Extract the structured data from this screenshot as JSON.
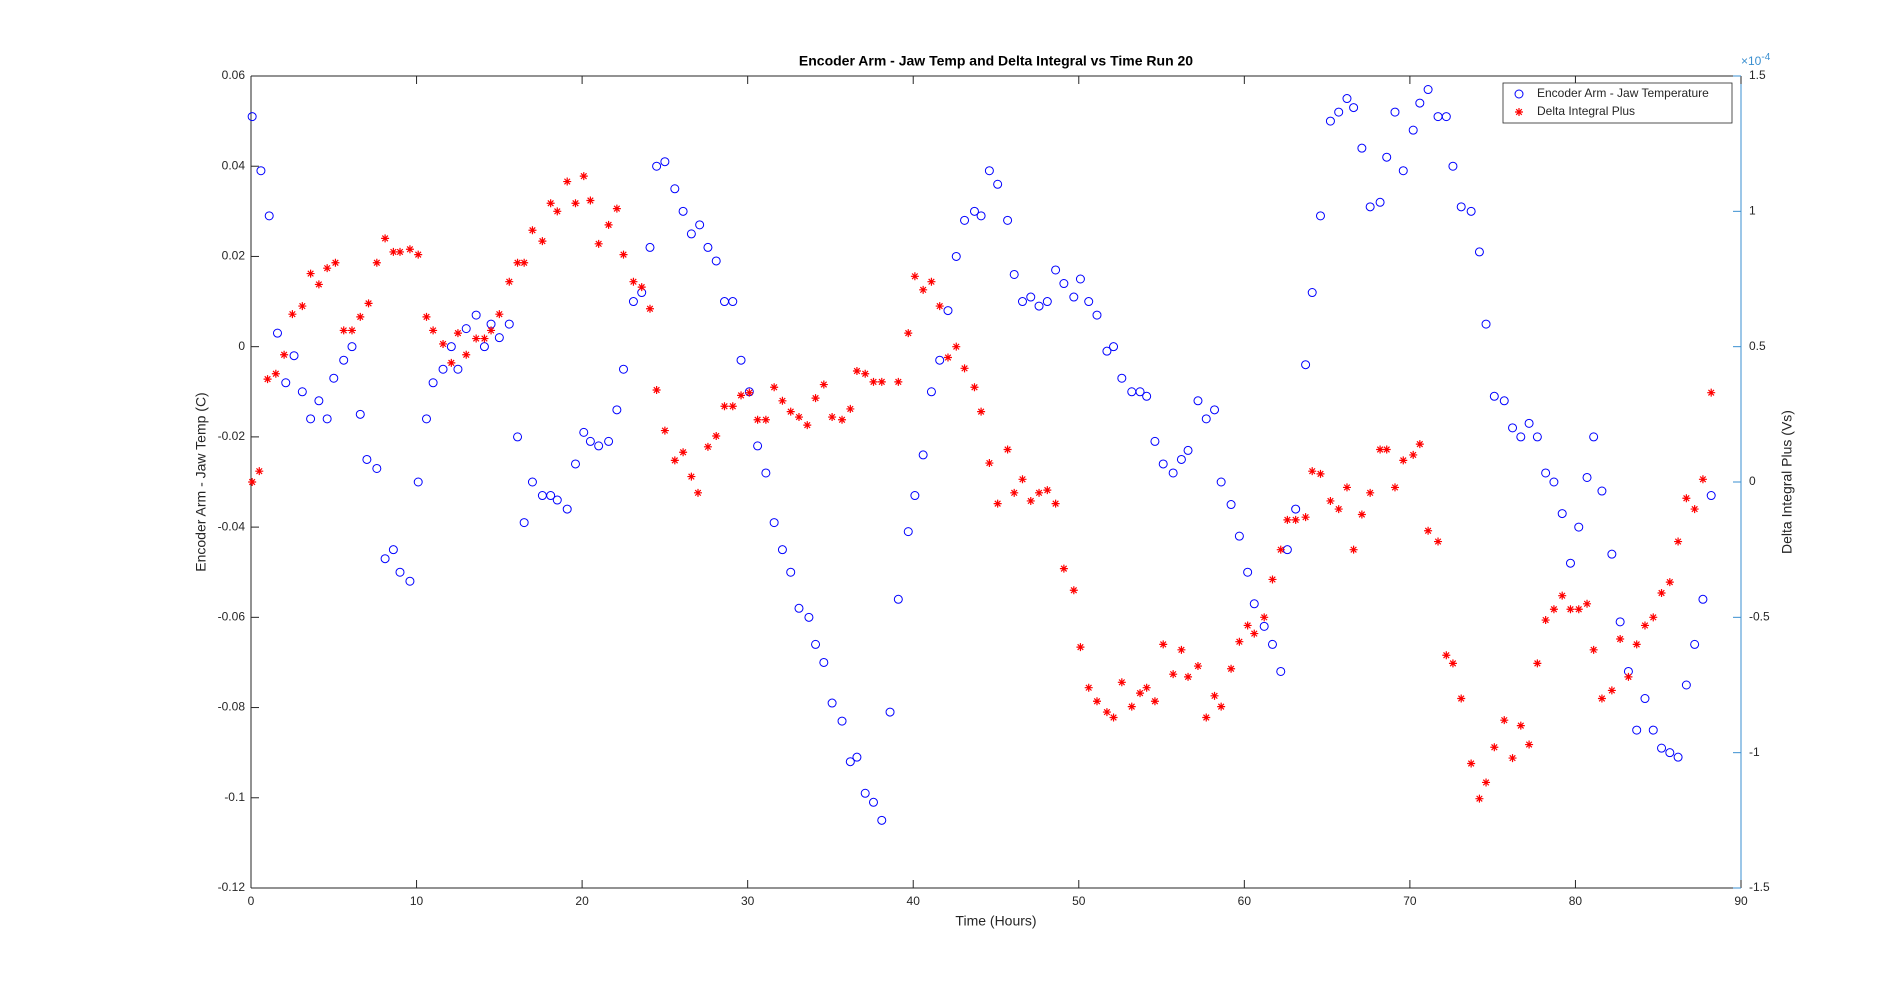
{
  "chart_data": {
    "type": "scatter",
    "title": "Encoder Arm - Jaw Temp and Delta Integral vs Time Run 20",
    "x_label": "Time (Hours)",
    "y_label": "Encoder Arm - Jaw Temp (C)",
    "y2_label": "Delta Integral Plus (Vs)",
    "y2_multiplier": {
      "base": "×10",
      "exponent": "-4"
    },
    "y2_color": "#3a8fd0",
    "xlim": [
      0,
      90
    ],
    "xticks": [
      0,
      10,
      20,
      30,
      40,
      50,
      60,
      70,
      80,
      90
    ],
    "ylim": [
      -0.12,
      0.06
    ],
    "yticks": [
      -0.12,
      -0.1,
      -0.08,
      -0.06,
      -0.04,
      -0.02,
      0,
      0.02,
      0.04,
      0.06
    ],
    "y2lim": [
      -1.5,
      1.5
    ],
    "y2ticks": [
      -1.5,
      -1,
      -0.5,
      0,
      0.5,
      1,
      1.5
    ],
    "grid": false,
    "legend": "top-right",
    "series": [
      {
        "name": "Encoder Arm - Jaw Temperature",
        "color": "#0000ff",
        "marker": "circle",
        "axis": "y",
        "x": [
          0.07,
          0.6,
          1.1,
          1.6,
          2.1,
          2.6,
          3.1,
          3.6,
          4.1,
          4.6,
          5.0,
          5.6,
          6.1,
          6.6,
          7.0,
          7.6,
          8.1,
          8.6,
          9.0,
          9.6,
          10.1,
          10.6,
          11.0,
          11.6,
          12.1,
          12.5,
          13.0,
          13.6,
          14.1,
          14.5,
          15.0,
          15.6,
          16.1,
          16.5,
          17.0,
          17.6,
          18.1,
          18.5,
          19.1,
          19.6,
          20.1,
          20.5,
          21.0,
          21.6,
          22.1,
          22.5,
          23.1,
          23.6,
          24.1,
          24.5,
          25.0,
          25.6,
          26.1,
          26.6,
          27.1,
          27.6,
          28.1,
          28.6,
          29.1,
          29.6,
          30.1,
          30.6,
          31.1,
          31.6,
          32.1,
          32.6,
          33.1,
          33.7,
          34.1,
          34.6,
          35.1,
          35.7,
          36.2,
          36.6,
          37.1,
          37.6,
          38.1,
          38.6,
          39.1,
          39.7,
          40.1,
          40.6,
          41.1,
          41.6,
          42.1,
          42.6,
          43.1,
          43.7,
          44.1,
          44.6,
          45.1,
          45.7,
          46.1,
          46.6,
          47.1,
          47.6,
          48.1,
          48.6,
          49.1,
          49.7,
          50.1,
          50.6,
          51.1,
          51.7,
          52.1,
          52.6,
          53.2,
          53.7,
          54.1,
          54.6,
          55.1,
          55.7,
          56.2,
          56.6,
          57.2,
          57.7,
          58.2,
          58.6,
          59.2,
          59.7,
          60.2,
          60.6,
          61.2,
          61.7,
          62.2,
          62.6,
          63.1,
          63.7,
          64.1,
          64.6,
          65.2,
          65.7,
          66.2,
          66.6,
          67.1,
          67.6,
          68.2,
          68.6,
          69.1,
          69.6,
          70.2,
          70.6,
          71.1,
          71.7,
          72.2,
          72.6,
          73.1,
          73.7,
          74.2,
          74.6,
          75.1,
          75.7,
          76.2,
          76.7,
          77.2,
          77.7,
          78.2,
          78.7,
          79.2,
          79.7,
          80.2,
          80.7,
          81.1,
          81.6,
          82.2,
          82.7,
          83.2,
          83.7,
          84.2,
          84.7,
          85.2,
          85.7,
          86.2,
          86.7,
          87.2,
          87.7,
          88.2
        ],
        "values": [
          0.051,
          0.039,
          0.029,
          0.003,
          -0.008,
          -0.002,
          -0.01,
          -0.016,
          -0.012,
          -0.016,
          -0.007,
          -0.003,
          0.0,
          -0.015,
          -0.025,
          -0.027,
          -0.047,
          -0.045,
          -0.05,
          -0.052,
          -0.03,
          -0.016,
          -0.008,
          -0.005,
          0.0,
          -0.005,
          0.004,
          0.007,
          0.0,
          0.005,
          0.002,
          0.005,
          -0.02,
          -0.039,
          -0.03,
          -0.033,
          -0.033,
          -0.034,
          -0.036,
          -0.026,
          -0.019,
          -0.021,
          -0.022,
          -0.021,
          -0.014,
          -0.005,
          0.01,
          0.012,
          0.022,
          0.04,
          0.041,
          0.035,
          0.03,
          0.025,
          0.027,
          0.022,
          0.019,
          0.01,
          0.01,
          -0.003,
          -0.01,
          -0.022,
          -0.028,
          -0.039,
          -0.045,
          -0.05,
          -0.058,
          -0.06,
          -0.066,
          -0.07,
          -0.079,
          -0.083,
          -0.092,
          -0.091,
          -0.099,
          -0.101,
          -0.105,
          -0.081,
          -0.056,
          -0.041,
          -0.033,
          -0.024,
          -0.01,
          -0.003,
          0.008,
          0.02,
          0.028,
          0.03,
          0.029,
          0.039,
          0.036,
          0.028,
          0.016,
          0.01,
          0.011,
          0.009,
          0.01,
          0.017,
          0.014,
          0.011,
          0.015,
          0.01,
          0.007,
          -0.001,
          0.0,
          -0.007,
          -0.01,
          -0.01,
          -0.011,
          -0.021,
          -0.026,
          -0.028,
          -0.025,
          -0.023,
          -0.012,
          -0.016,
          -0.014,
          -0.03,
          -0.035,
          -0.042,
          -0.05,
          -0.057,
          -0.062,
          -0.066,
          -0.072,
          -0.045,
          -0.036,
          -0.004,
          0.012,
          0.029,
          0.05,
          0.052,
          0.055,
          0.053,
          0.044,
          0.031,
          0.032,
          0.042,
          0.052,
          0.039,
          0.048,
          0.054,
          0.057,
          0.051,
          0.051,
          0.04,
          0.031,
          0.03,
          0.021,
          0.005,
          -0.011,
          -0.012,
          -0.018,
          -0.02,
          -0.017,
          -0.02,
          -0.028,
          -0.03,
          -0.037,
          -0.048,
          -0.04,
          -0.029,
          -0.02,
          -0.032,
          -0.046,
          -0.061,
          -0.072,
          -0.085,
          -0.078,
          -0.085,
          -0.089,
          -0.09,
          -0.091,
          -0.075,
          -0.066,
          -0.056,
          -0.033
        ]
      },
      {
        "name": "Delta Integral Plus",
        "color": "#ff0000",
        "marker": "asterisk",
        "axis": "y2",
        "x": [
          0.07,
          0.5,
          1.0,
          1.5,
          2.0,
          2.5,
          3.1,
          3.6,
          4.1,
          4.6,
          5.1,
          5.6,
          6.1,
          6.6,
          7.1,
          7.6,
          8.1,
          8.6,
          9.0,
          9.6,
          10.1,
          10.6,
          11.0,
          11.6,
          12.1,
          12.5,
          13.0,
          13.6,
          14.1,
          14.5,
          15.0,
          15.6,
          16.1,
          16.5,
          17.0,
          17.6,
          18.1,
          18.5,
          19.1,
          19.6,
          20.1,
          20.5,
          21.0,
          21.6,
          22.1,
          22.5,
          23.1,
          23.6,
          24.1,
          24.5,
          25.0,
          25.6,
          26.1,
          26.6,
          27.0,
          27.6,
          28.1,
          28.6,
          29.1,
          29.6,
          30.1,
          30.6,
          31.1,
          31.6,
          32.1,
          32.6,
          33.1,
          33.6,
          34.1,
          34.6,
          35.1,
          35.7,
          36.2,
          36.6,
          37.1,
          37.6,
          38.1,
          39.1,
          39.7,
          40.1,
          40.6,
          41.1,
          41.6,
          42.1,
          42.6,
          43.1,
          43.7,
          44.1,
          44.6,
          45.1,
          45.7,
          46.1,
          46.6,
          47.1,
          47.6,
          48.1,
          48.6,
          49.1,
          49.7,
          50.1,
          50.6,
          51.1,
          51.7,
          52.1,
          52.6,
          53.2,
          53.7,
          54.1,
          54.6,
          55.1,
          55.7,
          56.2,
          56.6,
          57.2,
          57.7,
          58.2,
          58.6,
          59.2,
          59.7,
          60.2,
          60.6,
          61.2,
          61.7,
          62.2,
          62.6,
          63.1,
          63.7,
          64.1,
          64.6,
          65.2,
          65.7,
          66.2,
          66.6,
          67.1,
          67.6,
          68.2,
          68.6,
          69.1,
          69.6,
          70.2,
          70.6,
          71.1,
          71.7,
          72.2,
          72.6,
          73.1,
          73.7,
          74.2,
          74.6,
          75.1,
          75.7,
          76.2,
          76.7,
          77.2,
          77.7,
          78.2,
          78.7,
          79.2,
          79.7,
          80.2,
          80.7,
          81.1,
          81.6,
          82.2,
          82.7,
          83.2,
          83.7,
          84.2,
          84.7,
          85.2,
          85.7,
          86.2,
          86.7,
          87.2,
          87.7,
          88.2
        ],
        "values": [
          0.0,
          0.04,
          0.38,
          0.4,
          0.47,
          0.62,
          0.65,
          0.77,
          0.73,
          0.79,
          0.81,
          0.56,
          0.56,
          0.61,
          0.66,
          0.81,
          0.9,
          0.85,
          0.85,
          0.86,
          0.84,
          0.61,
          0.56,
          0.51,
          0.44,
          0.55,
          0.47,
          0.53,
          0.53,
          0.56,
          0.62,
          0.74,
          0.81,
          0.81,
          0.93,
          0.89,
          1.03,
          1.0,
          1.11,
          1.03,
          1.13,
          1.04,
          0.88,
          0.95,
          1.01,
          0.84,
          0.74,
          0.72,
          0.64,
          0.34,
          0.19,
          0.08,
          0.11,
          0.02,
          -0.04,
          0.13,
          0.17,
          0.28,
          0.28,
          0.32,
          0.33,
          0.23,
          0.23,
          0.35,
          0.3,
          0.26,
          0.24,
          0.21,
          0.31,
          0.36,
          0.24,
          0.23,
          0.27,
          0.41,
          0.4,
          0.37,
          0.37,
          0.37,
          0.55,
          0.76,
          0.71,
          0.74,
          0.65,
          0.46,
          0.5,
          0.42,
          0.35,
          0.26,
          0.07,
          -0.08,
          0.12,
          -0.04,
          0.01,
          -0.07,
          -0.04,
          -0.03,
          -0.08,
          -0.32,
          -0.4,
          -0.61,
          -0.76,
          -0.81,
          -0.85,
          -0.87,
          -0.74,
          -0.83,
          -0.78,
          -0.76,
          -0.81,
          -0.6,
          -0.71,
          -0.62,
          -0.72,
          -0.68,
          -0.87,
          -0.79,
          -0.83,
          -0.69,
          -0.59,
          -0.53,
          -0.56,
          -0.5,
          -0.36,
          -0.25,
          -0.14,
          -0.14,
          -0.13,
          0.04,
          0.03,
          -0.07,
          -0.1,
          -0.02,
          -0.25,
          -0.12,
          -0.04,
          0.12,
          0.12,
          -0.02,
          0.08,
          0.1,
          0.14,
          -0.18,
          -0.22,
          -0.64,
          -0.67,
          -0.8,
          -1.04,
          -1.17,
          -1.11,
          -0.98,
          -0.88,
          -1.02,
          -0.9,
          -0.97,
          -0.67,
          -0.51,
          -0.47,
          -0.42,
          -0.47,
          -0.47,
          -0.45,
          -0.62,
          -0.8,
          -0.77,
          -0.58,
          -0.72,
          -0.6,
          -0.53,
          -0.5,
          -0.41,
          -0.37,
          -0.22,
          -0.06,
          -0.1,
          0.01,
          0.33
        ]
      }
    ]
  }
}
